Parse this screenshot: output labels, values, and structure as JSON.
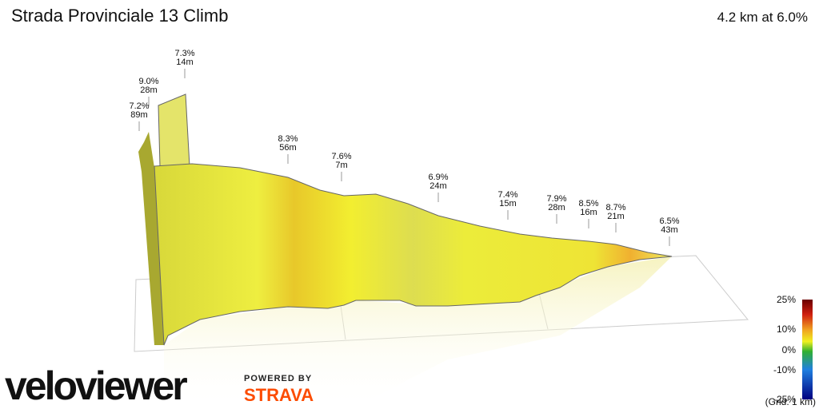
{
  "header": {
    "title": "Strada Provinciale 13 Climb",
    "summary": "4.2 km at 6.0%"
  },
  "annotations": [
    {
      "grade": "7.3%",
      "length": "14m"
    },
    {
      "grade": "9.0%",
      "length": "28m"
    },
    {
      "grade": "7.2%",
      "length": "89m"
    },
    {
      "grade": "8.3%",
      "length": "56m"
    },
    {
      "grade": "7.6%",
      "length": "7m"
    },
    {
      "grade": "6.9%",
      "length": "24m"
    },
    {
      "grade": "7.4%",
      "length": "15m"
    },
    {
      "grade": "7.9%",
      "length": "28m"
    },
    {
      "grade": "8.5%",
      "length": "16m"
    },
    {
      "grade": "8.7%",
      "length": "21m"
    },
    {
      "grade": "6.5%",
      "length": "43m"
    }
  ],
  "legend": {
    "ticks": [
      "25%",
      "10%",
      "0%",
      "-10%",
      "-25%"
    ],
    "grid_note": "(Grid: 1 km)"
  },
  "branding": {
    "logo": "veloviewer",
    "powered_by": "POWERED BY",
    "partner": "STRAVA"
  }
}
